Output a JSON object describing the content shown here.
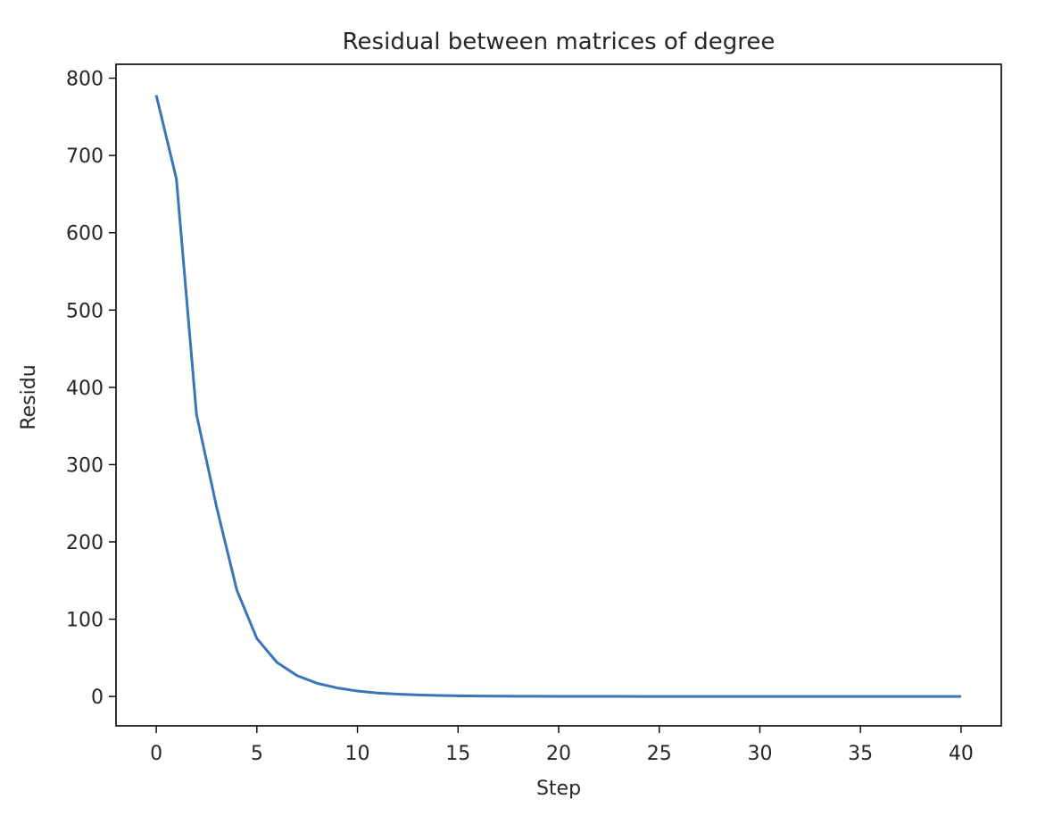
{
  "chart_data": {
    "type": "line",
    "title": "Residual between matrices of degree",
    "xlabel": "Step",
    "ylabel": "Residu",
    "xlim": [
      -2,
      42
    ],
    "ylim": [
      -38,
      818
    ],
    "xticks": [
      0,
      5,
      10,
      15,
      20,
      25,
      30,
      35,
      40
    ],
    "yticks": [
      0,
      100,
      200,
      300,
      400,
      500,
      600,
      700,
      800
    ],
    "grid": false,
    "series": [
      {
        "color": "#3b75b8",
        "x": [
          0,
          1,
          2,
          3,
          4,
          5,
          6,
          7,
          8,
          9,
          10,
          11,
          12,
          13,
          14,
          15,
          16,
          17,
          18,
          19,
          20,
          21,
          22,
          23,
          24,
          25,
          26,
          27,
          28,
          29,
          30,
          31,
          32,
          33,
          34,
          35,
          36,
          37,
          38,
          39,
          40
        ],
        "values": [
          778,
          670,
          365,
          245,
          138,
          75,
          44,
          27,
          17,
          11,
          7,
          4.5,
          3,
          2,
          1.3,
          0.9,
          0.6,
          0.4,
          0.3,
          0.2,
          0.15,
          0.1,
          0.07,
          0.05,
          0.04,
          0.03,
          0.02,
          0.02,
          0.01,
          0.01,
          0.01,
          0.01,
          0,
          0,
          0,
          0,
          0,
          0,
          0,
          0,
          0
        ]
      }
    ]
  }
}
